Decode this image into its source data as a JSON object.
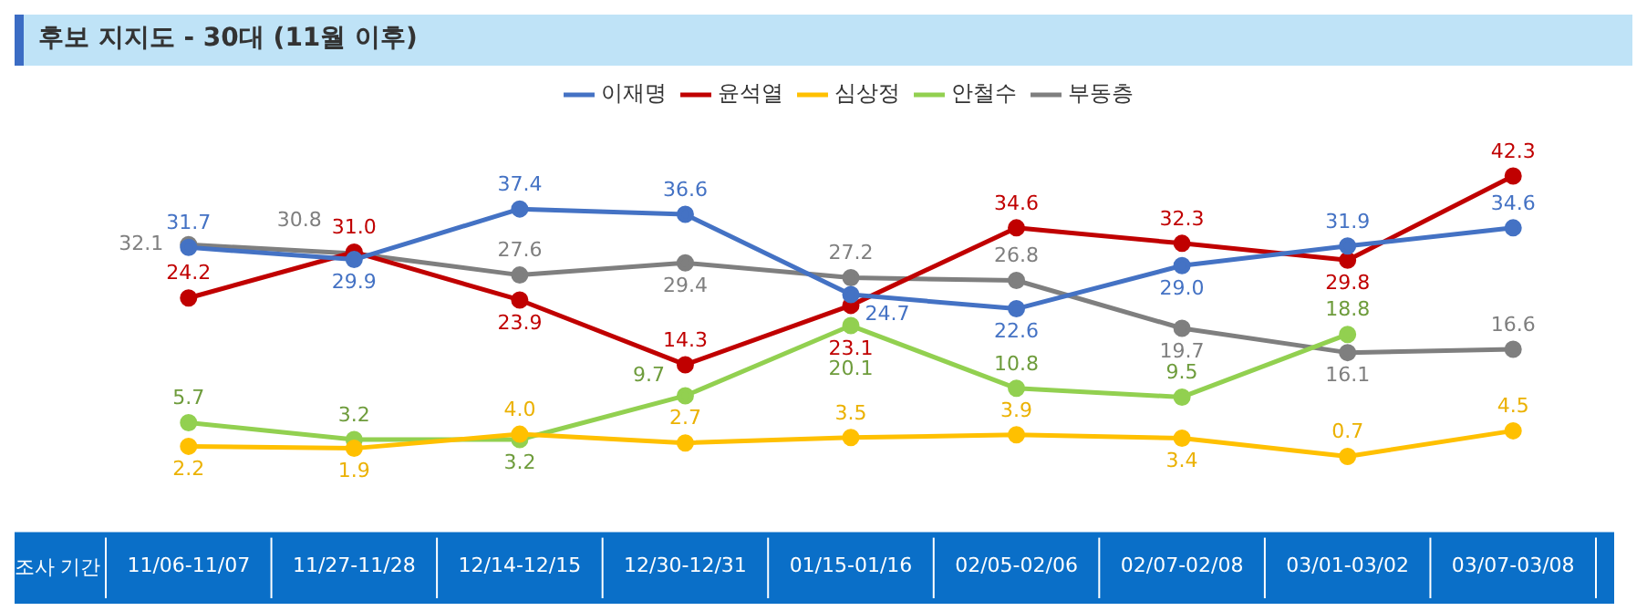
{
  "chart_data": {
    "type": "line",
    "title": "후보 지지도 - 30대 (11월 이후)",
    "xlabel": "조사 기간",
    "categories": [
      "11/06-11/07",
      "11/27-11/28",
      "12/14-12/15",
      "12/30-12/31",
      "01/15-01/16",
      "02/05-02/06",
      "02/07-02/08",
      "03/01-03/02",
      "03/07-03/08"
    ],
    "series": [
      {
        "name": "이재명",
        "color": "#4472c4",
        "values": [
          31.7,
          29.9,
          37.4,
          36.6,
          24.7,
          22.6,
          29.0,
          31.9,
          34.6
        ],
        "value_labels": [
          "31.7",
          "29.9",
          "37.4",
          "36.6",
          "24.7",
          "22.6",
          "29.0",
          "31.9",
          "34.6"
        ]
      },
      {
        "name": "윤석열",
        "color": "#c00000",
        "values": [
          24.2,
          31.0,
          23.9,
          14.3,
          23.1,
          34.6,
          32.3,
          29.8,
          42.3
        ],
        "value_labels": [
          "24.2",
          "31.0",
          "23.9",
          "14.3",
          "23.1",
          "34.6",
          "32.3",
          "29.8",
          "42.3"
        ]
      },
      {
        "name": "심상정",
        "color": "#ffc000",
        "values": [
          2.2,
          1.9,
          4.0,
          2.7,
          3.5,
          3.9,
          3.4,
          0.7,
          4.5
        ],
        "value_labels": [
          "2.2",
          "1.9",
          "4.0",
          "2.7",
          "3.5",
          "3.9",
          "3.4",
          "0.7",
          "4.5"
        ]
      },
      {
        "name": "안철수",
        "color": "#92d050",
        "values": [
          5.7,
          3.2,
          3.2,
          9.7,
          20.1,
          10.8,
          9.5,
          18.8,
          null
        ],
        "value_labels": [
          "5.7",
          "3.2",
          "3.2",
          "9.7",
          "20.1",
          "10.8",
          "9.5",
          "18.8",
          null
        ]
      },
      {
        "name": "부동층",
        "color": "#7f7f7f",
        "values": [
          32.1,
          30.8,
          27.6,
          29.4,
          27.2,
          26.8,
          19.7,
          16.1,
          16.6
        ],
        "value_labels": [
          "32.1",
          "30.8",
          "27.6",
          "29.4",
          "27.2",
          "26.8",
          "19.7",
          "16.1",
          "16.6"
        ]
      }
    ],
    "legend": "top",
    "marker": "circle",
    "line_style": "solid",
    "grid": false
  }
}
